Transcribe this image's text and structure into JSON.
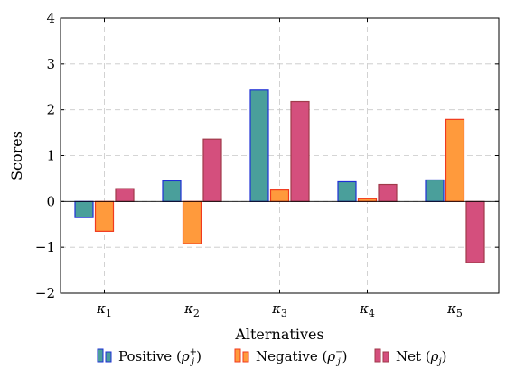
{
  "chart_data": {
    "type": "bar",
    "title": "",
    "xlabel": "Alternatives",
    "ylabel": "Scores",
    "ylim": [
      -2,
      4
    ],
    "yticks": [
      -2,
      -1,
      0,
      1,
      2,
      3,
      4
    ],
    "ytick_labels": [
      "−2",
      "−1",
      "0",
      "1",
      "2",
      "3",
      "4"
    ],
    "grid": true,
    "legend_position": "bottom",
    "categories": [
      "κ1",
      "κ2",
      "κ3",
      "κ4",
      "κ5"
    ],
    "category_labels": [
      {
        "main": "κ",
        "sub": "1"
      },
      {
        "main": "κ",
        "sub": "2"
      },
      {
        "main": "κ",
        "sub": "3"
      },
      {
        "main": "κ",
        "sub": "4"
      },
      {
        "main": "κ",
        "sub": "5"
      }
    ],
    "series": [
      {
        "name": "Positive (ρj+)",
        "legend": {
          "prefix": "Positive (",
          "symbol": "ρ",
          "sup": "+",
          "sub": "j",
          "suffix": ")"
        },
        "fill": "#4a9f9b",
        "stroke": "#1f2fd6",
        "values": [
          -0.35,
          0.45,
          2.43,
          0.43,
          0.47
        ]
      },
      {
        "name": "Negative (ρj−)",
        "legend": {
          "prefix": "Negative (",
          "symbol": "ρ",
          "sup": "−",
          "sub": "j",
          "suffix": ")"
        },
        "fill": "#ff9a3c",
        "stroke": "#f03a1e",
        "values": [
          -0.65,
          -0.92,
          0.25,
          0.06,
          1.79
        ]
      },
      {
        "name": "Net (ρj)",
        "legend": {
          "prefix": "Net (",
          "symbol": "ρ",
          "sup": "",
          "sub": "j",
          "suffix": ")"
        },
        "fill": "#d44f7d",
        "stroke": "#a03a4a",
        "values": [
          0.28,
          1.36,
          2.18,
          0.37,
          -1.33
        ]
      }
    ]
  }
}
